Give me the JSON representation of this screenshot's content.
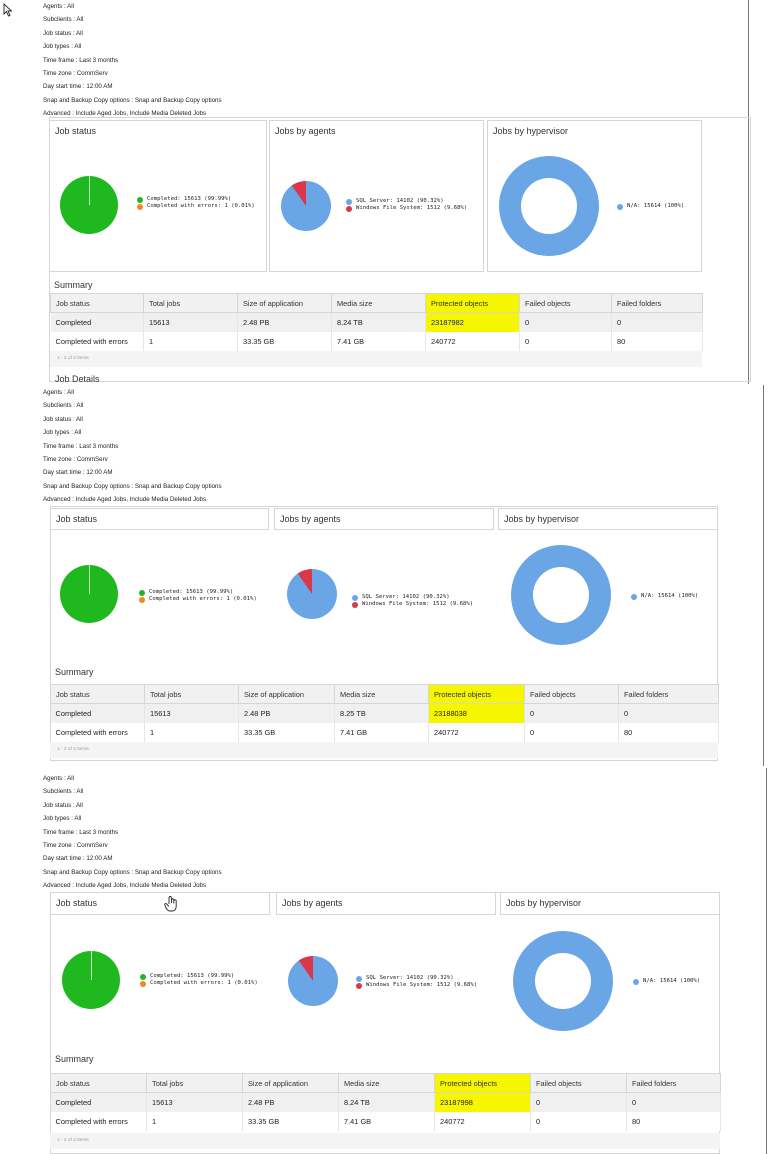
{
  "params": [
    {
      "label": "Agents",
      "value": "All"
    },
    {
      "label": "Subclients",
      "value": "All"
    },
    {
      "label": "Job status",
      "value": "All"
    },
    {
      "label": "Job types",
      "value": "All"
    },
    {
      "label": "Time frame",
      "value": "Last 3 months"
    },
    {
      "label": "Time zone",
      "value": "CommServ"
    },
    {
      "label": "Day start time",
      "value": "12:00 AM"
    },
    {
      "label": "Snap and Backup Copy options",
      "value": "Snap and Backup Copy options"
    },
    {
      "label": "Advanced",
      "value": "Include Aged Jobs, Include Media Deleted Jobs"
    }
  ],
  "charts": {
    "job_status_title": "Job status",
    "agents_title": "Jobs by agents",
    "hypervisor_title": "Jobs by hypervisor",
    "job_status_legend": [
      "Completed: 15613 (99.99%)",
      "Completed with errors: 1 (0.01%)"
    ],
    "agents_legend": [
      "SQL Server: 14102 (90.32%)",
      "Windows File System: 1512 (9.68%)"
    ],
    "hypervisor_legend": [
      "N/A: 15614 (100%)"
    ]
  },
  "summary_title": "Summary",
  "columns": [
    "Job status",
    "Total jobs",
    "Size of application",
    "Media size",
    "Protected objects",
    "Failed objects",
    "Failed folders"
  ],
  "pager": "1 - 2 of 2 items",
  "job_details": "Job Details",
  "panels": [
    {
      "rows": [
        [
          "Completed",
          "15613",
          "2.48 PB",
          "8.24 TB",
          "23187982",
          "0",
          "0"
        ],
        [
          "Completed with errors",
          "1",
          "33.35 GB",
          "7.41 GB",
          "240772",
          "0",
          "80"
        ]
      ]
    },
    {
      "rows": [
        [
          "Completed",
          "15613",
          "2.48 PB",
          "8.25 TB",
          "23188038",
          "0",
          "0"
        ],
        [
          "Completed with errors",
          "1",
          "33.35 GB",
          "7.41 GB",
          "240772",
          "0",
          "80"
        ]
      ]
    },
    {
      "rows": [
        [
          "Completed",
          "15613",
          "2.48 PB",
          "8.24 TB",
          "23187998",
          "0",
          "0"
        ],
        [
          "Completed with errors",
          "1",
          "33.35 GB",
          "7.41 GB",
          "240772",
          "0",
          "80"
        ]
      ]
    }
  ],
  "colors": {
    "completed": "#1fb81f",
    "errors": "#f08a24",
    "sql": "#6aa5e6",
    "windows": "#d8384a",
    "highlight": "#f6f600"
  },
  "icons": {
    "cursor_top": "pointer-arrow-icon",
    "cursor_bottom": "hand-icon"
  }
}
